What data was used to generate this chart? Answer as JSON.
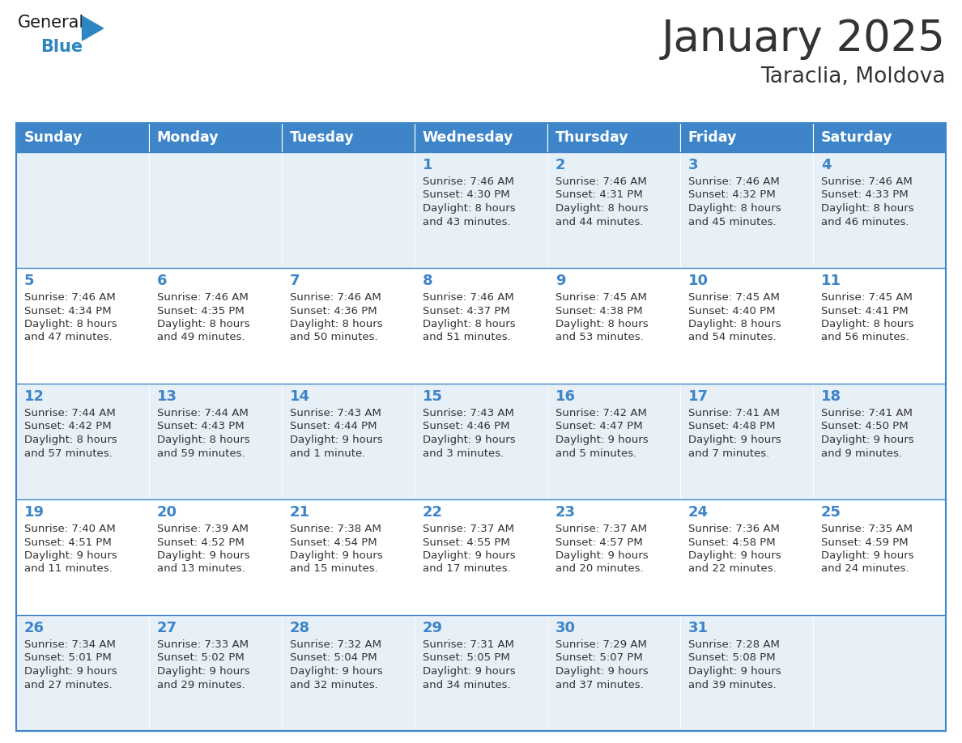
{
  "title": "January 2025",
  "subtitle": "Taraclia, Moldova",
  "header_color": "#3d85c8",
  "header_text_color": "#ffffff",
  "cell_bg_light": "#e8f0f7",
  "cell_bg_white": "#ffffff",
  "day_number_color": "#3d85c8",
  "text_color": "#333333",
  "line_color": "#3d85c8",
  "days_of_week": [
    "Sunday",
    "Monday",
    "Tuesday",
    "Wednesday",
    "Thursday",
    "Friday",
    "Saturday"
  ],
  "weeks": [
    [
      {
        "day": "",
        "sunrise": "",
        "sunset": "",
        "daylight": ""
      },
      {
        "day": "",
        "sunrise": "",
        "sunset": "",
        "daylight": ""
      },
      {
        "day": "",
        "sunrise": "",
        "sunset": "",
        "daylight": ""
      },
      {
        "day": "1",
        "sunrise": "7:46 AM",
        "sunset": "4:30 PM",
        "daylight": "8 hours\nand 43 minutes."
      },
      {
        "day": "2",
        "sunrise": "7:46 AM",
        "sunset": "4:31 PM",
        "daylight": "8 hours\nand 44 minutes."
      },
      {
        "day": "3",
        "sunrise": "7:46 AM",
        "sunset": "4:32 PM",
        "daylight": "8 hours\nand 45 minutes."
      },
      {
        "day": "4",
        "sunrise": "7:46 AM",
        "sunset": "4:33 PM",
        "daylight": "8 hours\nand 46 minutes."
      }
    ],
    [
      {
        "day": "5",
        "sunrise": "7:46 AM",
        "sunset": "4:34 PM",
        "daylight": "8 hours\nand 47 minutes."
      },
      {
        "day": "6",
        "sunrise": "7:46 AM",
        "sunset": "4:35 PM",
        "daylight": "8 hours\nand 49 minutes."
      },
      {
        "day": "7",
        "sunrise": "7:46 AM",
        "sunset": "4:36 PM",
        "daylight": "8 hours\nand 50 minutes."
      },
      {
        "day": "8",
        "sunrise": "7:46 AM",
        "sunset": "4:37 PM",
        "daylight": "8 hours\nand 51 minutes."
      },
      {
        "day": "9",
        "sunrise": "7:45 AM",
        "sunset": "4:38 PM",
        "daylight": "8 hours\nand 53 minutes."
      },
      {
        "day": "10",
        "sunrise": "7:45 AM",
        "sunset": "4:40 PM",
        "daylight": "8 hours\nand 54 minutes."
      },
      {
        "day": "11",
        "sunrise": "7:45 AM",
        "sunset": "4:41 PM",
        "daylight": "8 hours\nand 56 minutes."
      }
    ],
    [
      {
        "day": "12",
        "sunrise": "7:44 AM",
        "sunset": "4:42 PM",
        "daylight": "8 hours\nand 57 minutes."
      },
      {
        "day": "13",
        "sunrise": "7:44 AM",
        "sunset": "4:43 PM",
        "daylight": "8 hours\nand 59 minutes."
      },
      {
        "day": "14",
        "sunrise": "7:43 AM",
        "sunset": "4:44 PM",
        "daylight": "9 hours\nand 1 minute."
      },
      {
        "day": "15",
        "sunrise": "7:43 AM",
        "sunset": "4:46 PM",
        "daylight": "9 hours\nand 3 minutes."
      },
      {
        "day": "16",
        "sunrise": "7:42 AM",
        "sunset": "4:47 PM",
        "daylight": "9 hours\nand 5 minutes."
      },
      {
        "day": "17",
        "sunrise": "7:41 AM",
        "sunset": "4:48 PM",
        "daylight": "9 hours\nand 7 minutes."
      },
      {
        "day": "18",
        "sunrise": "7:41 AM",
        "sunset": "4:50 PM",
        "daylight": "9 hours\nand 9 minutes."
      }
    ],
    [
      {
        "day": "19",
        "sunrise": "7:40 AM",
        "sunset": "4:51 PM",
        "daylight": "9 hours\nand 11 minutes."
      },
      {
        "day": "20",
        "sunrise": "7:39 AM",
        "sunset": "4:52 PM",
        "daylight": "9 hours\nand 13 minutes."
      },
      {
        "day": "21",
        "sunrise": "7:38 AM",
        "sunset": "4:54 PM",
        "daylight": "9 hours\nand 15 minutes."
      },
      {
        "day": "22",
        "sunrise": "7:37 AM",
        "sunset": "4:55 PM",
        "daylight": "9 hours\nand 17 minutes."
      },
      {
        "day": "23",
        "sunrise": "7:37 AM",
        "sunset": "4:57 PM",
        "daylight": "9 hours\nand 20 minutes."
      },
      {
        "day": "24",
        "sunrise": "7:36 AM",
        "sunset": "4:58 PM",
        "daylight": "9 hours\nand 22 minutes."
      },
      {
        "day": "25",
        "sunrise": "7:35 AM",
        "sunset": "4:59 PM",
        "daylight": "9 hours\nand 24 minutes."
      }
    ],
    [
      {
        "day": "26",
        "sunrise": "7:34 AM",
        "sunset": "5:01 PM",
        "daylight": "9 hours\nand 27 minutes."
      },
      {
        "day": "27",
        "sunrise": "7:33 AM",
        "sunset": "5:02 PM",
        "daylight": "9 hours\nand 29 minutes."
      },
      {
        "day": "28",
        "sunrise": "7:32 AM",
        "sunset": "5:04 PM",
        "daylight": "9 hours\nand 32 minutes."
      },
      {
        "day": "29",
        "sunrise": "7:31 AM",
        "sunset": "5:05 PM",
        "daylight": "9 hours\nand 34 minutes."
      },
      {
        "day": "30",
        "sunrise": "7:29 AM",
        "sunset": "5:07 PM",
        "daylight": "9 hours\nand 37 minutes."
      },
      {
        "day": "31",
        "sunrise": "7:28 AM",
        "sunset": "5:08 PM",
        "daylight": "9 hours\nand 39 minutes."
      },
      {
        "day": "",
        "sunrise": "",
        "sunset": "",
        "daylight": ""
      }
    ]
  ],
  "logo_general_color": "#1a1a1a",
  "logo_blue_color": "#2e86c1",
  "title_fontsize": 38,
  "subtitle_fontsize": 19,
  "header_fontsize": 12.5,
  "day_number_fontsize": 13,
  "cell_text_fontsize": 9.5
}
